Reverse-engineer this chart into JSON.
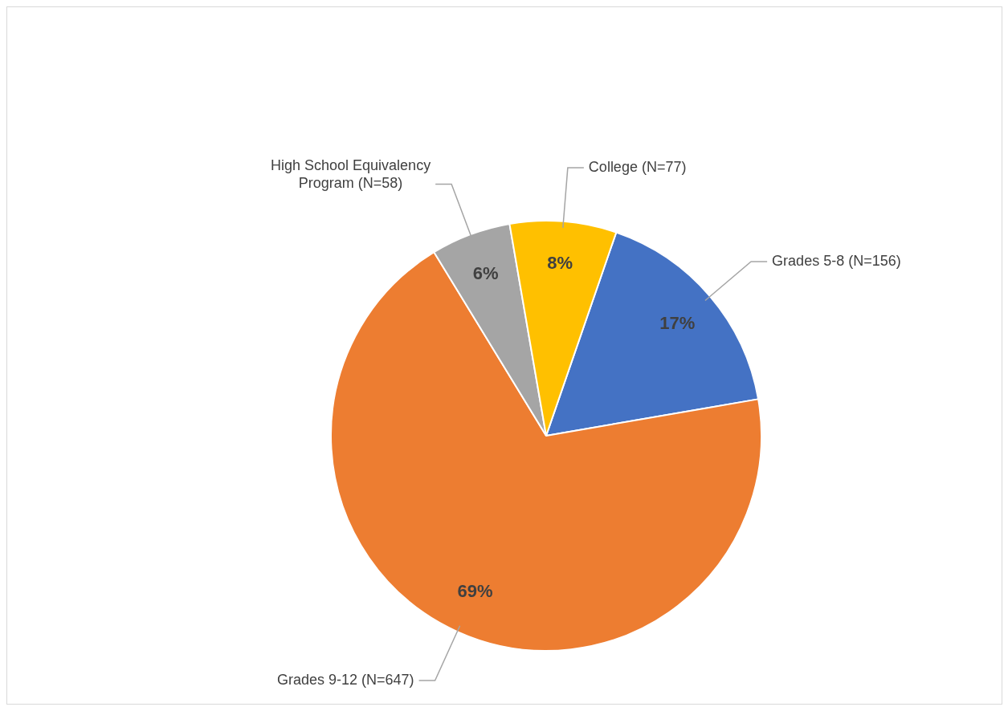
{
  "chart_data": {
    "type": "pie",
    "categories": [
      "Grades 5-8 (N=156)",
      "Grades 9-12 (N=647)",
      "High School Equivalency Program (N=58)",
      "College (N=77)"
    ],
    "values": [
      17,
      69,
      6,
      8
    ],
    "value_labels": [
      "17%",
      "69%",
      "6%",
      "8%"
    ],
    "colors": [
      "#4472c4",
      "#ed7d31",
      "#a5a5a5",
      "#ffc000"
    ],
    "legend": false
  }
}
